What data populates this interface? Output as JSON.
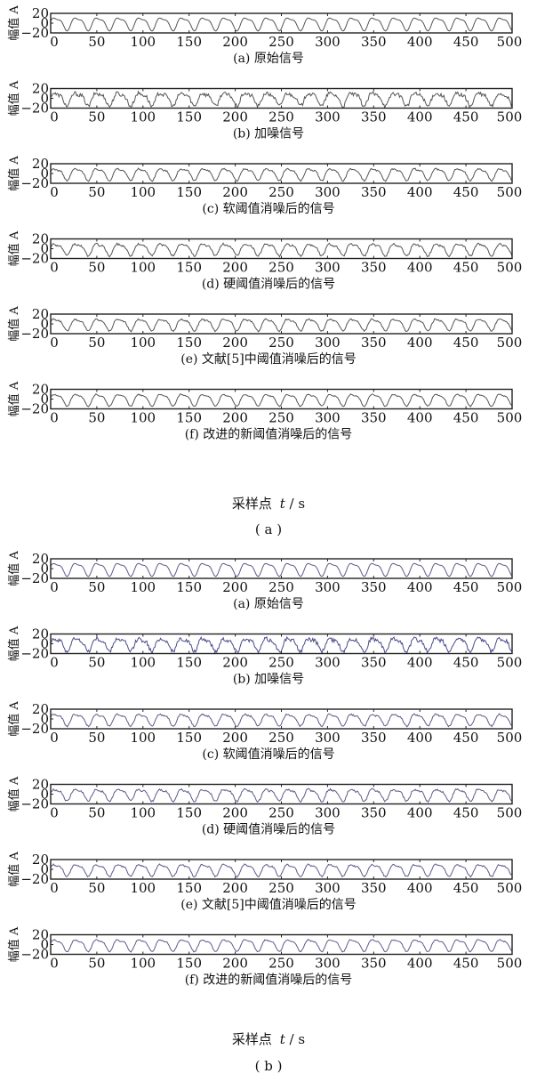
{
  "figure": {
    "panel_labels": [
      "( a )",
      "( b )"
    ],
    "xlabel_text": "采样点",
    "xlabel_var": "t",
    "xlabel_unit": "/ s",
    "ylabel": "幅值 A"
  },
  "chart_data": [
    {
      "type": "line",
      "group": "a",
      "title": "(a) 原始信号",
      "xlabel": "采样点 t/ s",
      "ylabel": "幅值 A",
      "xlim": [
        0,
        500
      ],
      "ylim": [
        -20,
        20
      ],
      "x_ticks": [
        0,
        50,
        100,
        150,
        200,
        250,
        300,
        350,
        400,
        450,
        500
      ],
      "y_ticks": [
        20,
        0,
        -20
      ],
      "series": [
        {
          "color": "#555555",
          "wave_period": 23,
          "amplitude": 12,
          "noise": 0
        }
      ]
    },
    {
      "type": "line",
      "group": "a",
      "title": "(b) 加噪信号",
      "xlabel": "采样点 t/ s",
      "ylabel": "幅值 A",
      "xlim": [
        0,
        500
      ],
      "ylim": [
        -20,
        20
      ],
      "x_ticks": [
        0,
        50,
        100,
        150,
        200,
        250,
        300,
        350,
        400,
        450,
        500
      ],
      "y_ticks": [
        20,
        0,
        -20
      ],
      "series": [
        {
          "color": "#555555",
          "wave_period": 23,
          "amplitude": 12,
          "noise": 4
        }
      ]
    },
    {
      "type": "line",
      "group": "a",
      "title": "(c) 软阈值消噪后的信号",
      "xlabel": "采样点 t/ s",
      "ylabel": "幅值 A",
      "xlim": [
        0,
        500
      ],
      "ylim": [
        -20,
        20
      ],
      "x_ticks": [
        0,
        50,
        100,
        150,
        200,
        250,
        300,
        350,
        400,
        450,
        500
      ],
      "y_ticks": [
        20,
        0,
        -20
      ],
      "series": [
        {
          "color": "#555555",
          "wave_period": 23,
          "amplitude": 11,
          "noise": 1.5
        }
      ]
    },
    {
      "type": "line",
      "group": "a",
      "title": "(d) 硬阈值消噪后的信号",
      "xlabel": "采样点 t/ s",
      "ylabel": "幅值 A",
      "xlim": [
        0,
        500
      ],
      "ylim": [
        -20,
        20
      ],
      "x_ticks": [
        0,
        50,
        100,
        150,
        200,
        250,
        300,
        350,
        400,
        450,
        500
      ],
      "y_ticks": [
        20,
        0,
        -20
      ],
      "series": [
        {
          "color": "#555555",
          "wave_period": 23,
          "amplitude": 11,
          "noise": 2
        }
      ]
    },
    {
      "type": "line",
      "group": "a",
      "title": "(e) 文献[5]中阈值消噪后的信号",
      "xlabel": "采样点 t/ s",
      "ylabel": "幅值 A",
      "xlim": [
        0,
        500
      ],
      "ylim": [
        -20,
        20
      ],
      "x_ticks": [
        0,
        50,
        100,
        150,
        200,
        250,
        300,
        350,
        400,
        450,
        500
      ],
      "y_ticks": [
        20,
        0,
        -20
      ],
      "series": [
        {
          "color": "#555555",
          "wave_period": 23,
          "amplitude": 11,
          "noise": 1.5
        }
      ]
    },
    {
      "type": "line",
      "group": "a",
      "title": "(f) 改进的新阈值消噪后的信号",
      "xlabel": "采样点 t/ s",
      "ylabel": "幅值 A",
      "xlim": [
        0,
        500
      ],
      "ylim": [
        -20,
        20
      ],
      "x_ticks": [
        0,
        50,
        100,
        150,
        200,
        250,
        300,
        350,
        400,
        450,
        500
      ],
      "y_ticks": [
        20,
        0,
        -20
      ],
      "series": [
        {
          "color": "#555555",
          "wave_period": 23,
          "amplitude": 11,
          "noise": 1
        }
      ]
    },
    {
      "type": "line",
      "group": "b",
      "title": "(a) 原始信号",
      "xlabel": "采样点 t/ s",
      "ylabel": "幅值 A",
      "xlim": [
        0,
        500
      ],
      "ylim": [
        -20,
        20
      ],
      "x_ticks": [
        0,
        50,
        100,
        150,
        200,
        250,
        300,
        350,
        400,
        450,
        500
      ],
      "y_ticks": [
        20,
        0,
        -20
      ],
      "series": [
        {
          "color": "#5c5c8a",
          "wave_period": 23,
          "amplitude": 12,
          "noise": 0
        }
      ]
    },
    {
      "type": "line",
      "group": "b",
      "title": "(b) 加噪信号",
      "xlabel": "采样点 t/ s",
      "ylabel": "幅值 A",
      "xlim": [
        0,
        500
      ],
      "ylim": [
        -20,
        20
      ],
      "x_ticks": [
        0,
        50,
        100,
        150,
        200,
        250,
        300,
        350,
        400,
        450,
        500
      ],
      "y_ticks": [
        20,
        0,
        -20
      ],
      "series": [
        {
          "color": "#4a4a8a",
          "wave_period": 23,
          "amplitude": 12,
          "noise": 4
        }
      ]
    },
    {
      "type": "line",
      "group": "b",
      "title": "(c) 软阈值消噪后的信号",
      "xlabel": "采样点 t/ s",
      "ylabel": "幅值 A",
      "xlim": [
        0,
        500
      ],
      "ylim": [
        -20,
        20
      ],
      "x_ticks": [
        0,
        50,
        100,
        150,
        200,
        250,
        300,
        350,
        400,
        450,
        500
      ],
      "y_ticks": [
        20,
        0,
        -20
      ],
      "series": [
        {
          "color": "#5c5c8a",
          "wave_period": 23,
          "amplitude": 11,
          "noise": 1.5
        }
      ]
    },
    {
      "type": "line",
      "group": "b",
      "title": "(d) 硬阈值消噪后的信号",
      "xlabel": "采样点 t/ s",
      "ylabel": "幅值 A",
      "xlim": [
        0,
        500
      ],
      "ylim": [
        -20,
        20
      ],
      "x_ticks": [
        0,
        50,
        100,
        150,
        200,
        250,
        300,
        350,
        400,
        450,
        500
      ],
      "y_ticks": [
        20,
        0,
        -20
      ],
      "series": [
        {
          "color": "#5c5c8a",
          "wave_period": 23,
          "amplitude": 11,
          "noise": 2
        }
      ]
    },
    {
      "type": "line",
      "group": "b",
      "title": "(e) 文献[5]中阈值消噪后的信号",
      "xlabel": "采样点 t/ s",
      "ylabel": "幅值 A",
      "xlim": [
        0,
        500
      ],
      "ylim": [
        -20,
        20
      ],
      "x_ticks": [
        0,
        50,
        100,
        150,
        200,
        250,
        300,
        350,
        400,
        450,
        500
      ],
      "y_ticks": [
        20,
        0,
        -20
      ],
      "series": [
        {
          "color": "#5c5c8a",
          "wave_period": 23,
          "amplitude": 11,
          "noise": 1.5
        }
      ]
    },
    {
      "type": "line",
      "group": "b",
      "title": "(f) 改进的新阈值消噪后的信号",
      "xlabel": "采样点 t/ s",
      "ylabel": "幅值 A",
      "xlim": [
        0,
        500
      ],
      "ylim": [
        -20,
        20
      ],
      "x_ticks": [
        0,
        50,
        100,
        150,
        200,
        250,
        300,
        350,
        400,
        450,
        500
      ],
      "y_ticks": [
        20,
        0,
        -20
      ],
      "series": [
        {
          "color": "#5c5c8a",
          "wave_period": 23,
          "amplitude": 11,
          "noise": 1
        }
      ]
    }
  ]
}
